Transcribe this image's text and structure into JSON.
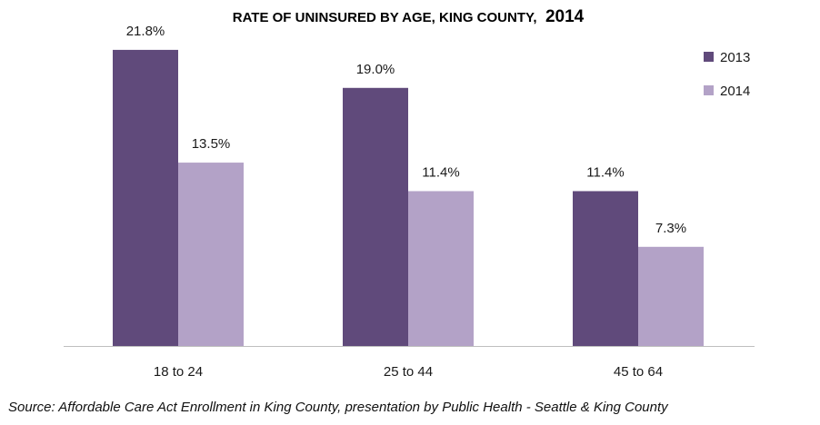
{
  "chart_data": {
    "type": "bar",
    "title": "RATE OF UNINSURED BY AGE, KING COUNTY,",
    "title_year": "2014",
    "categories": [
      "18 to 24",
      "25 to 44",
      "45 to 64"
    ],
    "series": [
      {
        "name": "2013",
        "values": [
          21.8,
          19.0,
          11.4
        ],
        "labels": [
          "21.8%",
          "19.0%",
          "11.4%"
        ],
        "color": "#604a7b"
      },
      {
        "name": "2014",
        "values": [
          13.5,
          11.4,
          7.3
        ],
        "labels": [
          "13.5%",
          "11.4%",
          "7.3%"
        ],
        "color": "#b3a2c7"
      }
    ],
    "ylim": [
      0,
      24
    ],
    "grid": false,
    "legend": "top-right",
    "source": "Source: Affordable Care Act Enrollment in King County, presentation by Public Health - Seattle & King County"
  }
}
